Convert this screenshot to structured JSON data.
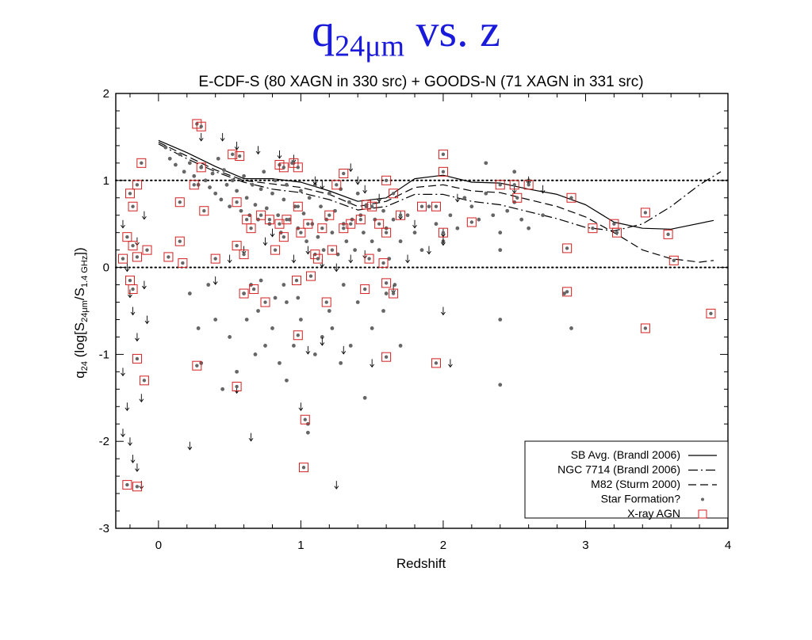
{
  "slide": {
    "title_main": "q",
    "title_sub": "24μm",
    "title_rest": " vs. z"
  },
  "chart_data": {
    "type": "scatter",
    "title": "E-CDF-S (80 XAGN in 330 src) + GOODS-N (71 XAGN in 331 src)",
    "xlabel": "Redshift",
    "ylabel_main": "q",
    "ylabel_sub": "24",
    "ylabel_rest": " (log[S",
    "ylabel_sub2": "24μm",
    "ylabel_rest2": "/S",
    "ylabel_sub3": "1.4 GHz",
    "ylabel_end": "])",
    "xlim": [
      -0.3,
      4.0
    ],
    "ylim": [
      -3.0,
      2.0
    ],
    "xticks": [
      "0",
      "1",
      "2",
      "3",
      "4"
    ],
    "yticks": [
      "-3",
      "-2",
      "-1",
      "0",
      "1",
      "2"
    ],
    "reference_lines": [
      1.0,
      0.0
    ],
    "legend": {
      "placement": "bottom-right",
      "entries": [
        {
          "label": "SB Avg. (Brandl 2006)",
          "style": "solid"
        },
        {
          "label": "NGC 7714 (Brandl 2006)",
          "style": "dash-dot"
        },
        {
          "label": "M82 (Sturm 2000)",
          "style": "dashed"
        },
        {
          "label": "Star Formation?",
          "style": "dot"
        },
        {
          "label": "X-ray AGN",
          "style": "square"
        }
      ]
    },
    "colors": {
      "points": "#666666",
      "agn": "#d42020",
      "title": "#1a1adb",
      "axis": "#000000"
    },
    "series": [
      {
        "name": "SB Avg. (Brandl 2006)",
        "style": "solid",
        "x": [
          0.0,
          0.2,
          0.4,
          0.6,
          0.8,
          1.0,
          1.2,
          1.4,
          1.6,
          1.8,
          2.0,
          2.2,
          2.4,
          2.6,
          2.8,
          3.0,
          3.2,
          3.4,
          3.6,
          3.9
        ],
        "y": [
          1.46,
          1.32,
          1.16,
          1.02,
          1.02,
          0.98,
          0.88,
          0.76,
          0.8,
          1.02,
          1.06,
          0.98,
          0.97,
          0.9,
          0.84,
          0.72,
          0.52,
          0.45,
          0.44,
          0.54
        ]
      },
      {
        "name": "NGC 7714 (Brandl 2006)",
        "style": "dash-dot",
        "x": [
          0.0,
          0.2,
          0.4,
          0.6,
          0.8,
          1.0,
          1.2,
          1.4,
          1.6,
          1.8,
          2.0,
          2.2,
          2.4,
          2.6,
          2.8,
          3.0,
          3.2,
          3.4,
          3.6,
          3.8,
          3.95
        ],
        "y": [
          1.42,
          1.25,
          1.1,
          0.98,
          0.9,
          0.86,
          0.78,
          0.66,
          0.7,
          0.84,
          0.84,
          0.76,
          0.72,
          0.64,
          0.56,
          0.46,
          0.42,
          0.5,
          0.7,
          0.95,
          1.1
        ]
      },
      {
        "name": "M82 (Sturm 2000)",
        "style": "dashed",
        "x": [
          0.0,
          0.2,
          0.4,
          0.6,
          0.8,
          1.0,
          1.2,
          1.4,
          1.6,
          1.8,
          2.0,
          2.2,
          2.4,
          2.6,
          2.8,
          3.0,
          3.2,
          3.4,
          3.6,
          3.8,
          3.9
        ],
        "y": [
          1.44,
          1.28,
          1.12,
          1.0,
          0.96,
          0.92,
          0.84,
          0.7,
          0.76,
          0.92,
          0.95,
          0.88,
          0.86,
          0.78,
          0.7,
          0.58,
          0.4,
          0.2,
          0.1,
          0.06,
          0.08
        ]
      }
    ],
    "star_formation_points": [
      [
        0.05,
        1.38
      ],
      [
        0.08,
        1.25
      ],
      [
        0.12,
        1.18
      ],
      [
        0.15,
        1.3
      ],
      [
        0.18,
        1.1
      ],
      [
        0.22,
        1.2
      ],
      [
        0.25,
        1.05
      ],
      [
        0.28,
        0.95
      ],
      [
        0.3,
        1.15
      ],
      [
        0.33,
        1.0
      ],
      [
        0.36,
        0.92
      ],
      [
        0.38,
        1.08
      ],
      [
        0.4,
        0.85
      ],
      [
        0.42,
        1.25
      ],
      [
        0.44,
        0.78
      ],
      [
        0.46,
        1.12
      ],
      [
        0.48,
        0.95
      ],
      [
        0.5,
        0.7
      ],
      [
        0.52,
        1.0
      ],
      [
        0.55,
        0.88
      ],
      [
        0.58,
        0.65
      ],
      [
        0.6,
        1.05
      ],
      [
        0.62,
        0.8
      ],
      [
        0.64,
        0.6
      ],
      [
        0.66,
        0.95
      ],
      [
        0.68,
        0.72
      ],
      [
        0.7,
        0.55
      ],
      [
        0.72,
        0.9
      ],
      [
        0.74,
        1.1
      ],
      [
        0.76,
        0.68
      ],
      [
        0.78,
        0.5
      ],
      [
        0.8,
        0.85
      ],
      [
        0.82,
        1.0
      ],
      [
        0.84,
        0.6
      ],
      [
        0.86,
        0.4
      ],
      [
        0.88,
        0.78
      ],
      [
        0.9,
        0.95
      ],
      [
        0.92,
        0.55
      ],
      [
        0.94,
        1.2
      ],
      [
        0.96,
        0.7
      ],
      [
        0.98,
        0.45
      ],
      [
        1.0,
        0.88
      ],
      [
        1.02,
        0.62
      ],
      [
        1.04,
        0.3
      ],
      [
        1.06,
        0.8
      ],
      [
        1.08,
        0.5
      ],
      [
        1.1,
        0.95
      ],
      [
        1.12,
        0.35
      ],
      [
        1.14,
        0.7
      ],
      [
        1.16,
        0.2
      ],
      [
        1.18,
        0.55
      ],
      [
        1.2,
        0.85
      ],
      [
        1.22,
        0.4
      ],
      [
        1.24,
        0.65
      ],
      [
        1.26,
        0.15
      ],
      [
        1.28,
        0.9
      ],
      [
        1.3,
        0.5
      ],
      [
        1.32,
        0.3
      ],
      [
        1.34,
        0.75
      ],
      [
        1.36,
        0.55
      ],
      [
        1.38,
        0.2
      ],
      [
        1.4,
        0.85
      ],
      [
        1.42,
        0.6
      ],
      [
        1.44,
        0.4
      ],
      [
        1.46,
        0.7
      ],
      [
        1.5,
        0.3
      ],
      [
        1.52,
        0.55
      ],
      [
        1.55,
        0.2
      ],
      [
        1.58,
        0.65
      ],
      [
        1.6,
        0.45
      ],
      [
        1.62,
        0.1
      ],
      [
        1.65,
        0.55
      ],
      [
        1.7,
        0.3
      ],
      [
        1.75,
        0.6
      ],
      [
        1.8,
        0.4
      ],
      [
        1.85,
        0.2
      ],
      [
        1.9,
        0.7
      ],
      [
        1.95,
        0.5
      ],
      [
        2.0,
        0.3
      ],
      [
        2.05,
        0.6
      ],
      [
        2.1,
        0.45
      ],
      [
        2.15,
        0.8
      ],
      [
        2.2,
        0.7
      ],
      [
        2.25,
        0.55
      ],
      [
        2.3,
        0.85
      ],
      [
        2.35,
        0.6
      ],
      [
        2.4,
        0.4
      ],
      [
        2.45,
        0.65
      ],
      [
        2.5,
        0.75
      ],
      [
        2.55,
        0.55
      ],
      [
        2.6,
        0.45
      ],
      [
        2.7,
        0.6
      ],
      [
        2.3,
        1.2
      ],
      [
        2.5,
        1.1
      ],
      [
        2.6,
        1.0
      ],
      [
        2.4,
        0.2
      ],
      [
        0.6,
        -0.3
      ],
      [
        0.7,
        -0.5
      ],
      [
        0.8,
        -0.7
      ],
      [
        0.9,
        -0.4
      ],
      [
        0.95,
        -0.9
      ],
      [
        1.0,
        -0.6
      ],
      [
        1.1,
        -1.0
      ],
      [
        1.2,
        -0.5
      ],
      [
        0.5,
        -0.8
      ],
      [
        0.4,
        -0.6
      ],
      [
        0.3,
        -1.1
      ],
      [
        0.55,
        -1.2
      ],
      [
        0.65,
        -0.2
      ],
      [
        0.75,
        -0.9
      ],
      [
        0.85,
        -1.1
      ],
      [
        1.3,
        -0.2
      ],
      [
        1.4,
        -0.4
      ],
      [
        1.45,
        -1.5
      ],
      [
        1.5,
        -0.7
      ],
      [
        1.6,
        -0.3
      ],
      [
        1.7,
        -0.9
      ],
      [
        0.45,
        -1.4
      ],
      [
        1.05,
        -1.8
      ],
      [
        1.05,
        -1.9
      ],
      [
        0.9,
        -1.3
      ],
      [
        1.15,
        -0.8
      ],
      [
        1.35,
        -0.9
      ],
      [
        2.4,
        -1.35
      ],
      [
        2.4,
        -0.6
      ],
      [
        2.9,
        -0.7
      ],
      [
        2.85,
        -0.3
      ],
      [
        0.22,
        -0.3
      ],
      [
        0.28,
        -0.7
      ],
      [
        0.35,
        -0.2
      ],
      [
        0.62,
        -0.6
      ],
      [
        0.68,
        -1.0
      ],
      [
        0.72,
        -0.15
      ],
      [
        0.82,
        -0.35
      ],
      [
        0.88,
        -0.2
      ],
      [
        0.98,
        -0.35
      ],
      [
        1.22,
        -0.7
      ],
      [
        1.28,
        -1.1
      ],
      [
        1.58,
        -0.5
      ],
      [
        1.66,
        -0.2
      ]
    ],
    "xray_agn_points": [
      [
        0.27,
        1.65
      ],
      [
        0.3,
        1.62
      ],
      [
        0.52,
        1.3
      ],
      [
        0.57,
        1.28
      ],
      [
        0.3,
        1.15
      ],
      [
        0.85,
        1.18
      ],
      [
        0.88,
        1.15
      ],
      [
        0.95,
        1.2
      ],
      [
        0.98,
        1.15
      ],
      [
        1.25,
        0.95
      ],
      [
        1.3,
        1.08
      ],
      [
        1.6,
        1.0
      ],
      [
        2.0,
        1.3
      ],
      [
        2.0,
        1.1
      ],
      [
        2.4,
        0.95
      ],
      [
        2.5,
        0.95
      ],
      [
        2.6,
        0.95
      ],
      [
        0.25,
        0.95
      ],
      [
        0.15,
        0.75
      ],
      [
        0.32,
        0.65
      ],
      [
        0.55,
        0.75
      ],
      [
        0.62,
        0.55
      ],
      [
        0.65,
        0.45
      ],
      [
        0.72,
        0.6
      ],
      [
        0.78,
        0.55
      ],
      [
        0.85,
        0.5
      ],
      [
        0.9,
        0.55
      ],
      [
        0.98,
        0.7
      ],
      [
        1.05,
        0.5
      ],
      [
        1.15,
        0.45
      ],
      [
        1.2,
        0.6
      ],
      [
        1.3,
        0.45
      ],
      [
        1.35,
        0.5
      ],
      [
        1.42,
        0.55
      ],
      [
        1.46,
        0.72
      ],
      [
        1.5,
        0.7
      ],
      [
        1.55,
        0.5
      ],
      [
        1.6,
        0.4
      ],
      [
        1.65,
        0.85
      ],
      [
        1.7,
        0.6
      ],
      [
        1.85,
        0.7
      ],
      [
        1.95,
        0.7
      ],
      [
        2.0,
        0.4
      ],
      [
        2.2,
        0.52
      ],
      [
        2.52,
        0.8
      ],
      [
        2.9,
        0.8
      ],
      [
        3.2,
        0.5
      ],
      [
        3.22,
        0.4
      ],
      [
        3.05,
        0.45
      ],
      [
        3.42,
        0.63
      ],
      [
        3.58,
        0.38
      ],
      [
        3.62,
        0.08
      ],
      [
        2.87,
        0.22
      ],
      [
        0.15,
        0.3
      ],
      [
        0.4,
        0.1
      ],
      [
        0.55,
        0.25
      ],
      [
        0.6,
        0.15
      ],
      [
        0.82,
        0.2
      ],
      [
        0.88,
        0.35
      ],
      [
        1.0,
        0.4
      ],
      [
        1.1,
        0.15
      ],
      [
        1.12,
        0.1
      ],
      [
        1.22,
        0.2
      ],
      [
        1.48,
        0.1
      ],
      [
        1.58,
        0.05
      ],
      [
        0.07,
        0.12
      ],
      [
        0.17,
        0.05
      ],
      [
        0.6,
        -0.3
      ],
      [
        0.67,
        -0.25
      ],
      [
        0.75,
        -0.4
      ],
      [
        0.97,
        -0.15
      ],
      [
        1.07,
        -0.1
      ],
      [
        1.18,
        -0.4
      ],
      [
        1.45,
        -0.25
      ],
      [
        1.6,
        -0.18
      ],
      [
        1.65,
        -0.3
      ],
      [
        0.98,
        -0.78
      ],
      [
        1.6,
        -1.03
      ],
      [
        0.27,
        -1.13
      ],
      [
        0.55,
        -1.37
      ],
      [
        1.03,
        -1.75
      ],
      [
        1.02,
        -2.3
      ],
      [
        1.95,
        -1.1
      ],
      [
        2.87,
        -0.28
      ],
      [
        3.42,
        -0.7
      ],
      [
        3.88,
        -0.53
      ],
      [
        -0.2,
        0.85
      ],
      [
        -0.18,
        0.7
      ],
      [
        -0.15,
        0.95
      ],
      [
        -0.12,
        1.2
      ],
      [
        -0.22,
        0.35
      ],
      [
        -0.18,
        0.25
      ],
      [
        -0.15,
        0.12
      ],
      [
        -0.25,
        0.1
      ],
      [
        -0.2,
        -0.15
      ],
      [
        -0.18,
        -0.25
      ],
      [
        -0.15,
        -1.05
      ],
      [
        -0.1,
        -1.3
      ],
      [
        -0.22,
        -2.5
      ],
      [
        -0.15,
        -2.52
      ],
      [
        -0.08,
        0.2
      ]
    ],
    "upper_limit_arrows": [
      [
        0.3,
        1.5
      ],
      [
        0.45,
        1.5
      ],
      [
        0.55,
        1.4
      ],
      [
        0.7,
        1.35
      ],
      [
        0.85,
        1.3
      ],
      [
        0.95,
        1.25
      ],
      [
        1.1,
        1.0
      ],
      [
        1.15,
        0.95
      ],
      [
        1.35,
        1.15
      ],
      [
        1.4,
        1.0
      ],
      [
        1.45,
        0.9
      ],
      [
        1.55,
        0.8
      ],
      [
        1.7,
        0.6
      ],
      [
        1.8,
        0.5
      ],
      [
        2.0,
        0.4
      ],
      [
        2.1,
        0.8
      ],
      [
        2.5,
        0.9
      ],
      [
        2.6,
        1.0
      ],
      [
        2.7,
        0.9
      ],
      [
        0.5,
        0.1
      ],
      [
        0.6,
        0.2
      ],
      [
        0.75,
        0.3
      ],
      [
        0.8,
        0.4
      ],
      [
        0.95,
        0.1
      ],
      [
        1.05,
        0.2
      ],
      [
        1.15,
        0.05
      ],
      [
        1.25,
        0.0
      ],
      [
        1.35,
        0.1
      ],
      [
        1.45,
        0.15
      ],
      [
        1.75,
        0.1
      ],
      [
        1.9,
        0.2
      ],
      [
        2.0,
        0.3
      ],
      [
        0.55,
        -1.4
      ],
      [
        0.65,
        -1.95
      ],
      [
        0.22,
        -2.05
      ],
      [
        1.0,
        -1.6
      ],
      [
        1.05,
        -0.95
      ],
      [
        1.15,
        -0.85
      ],
      [
        1.3,
        -0.95
      ],
      [
        1.5,
        -1.1
      ],
      [
        1.65,
        -0.25
      ],
      [
        2.0,
        -0.5
      ],
      [
        2.05,
        -1.1
      ],
      [
        1.25,
        -2.5
      ],
      [
        0.4,
        -0.15
      ],
      [
        -0.25,
        0.5
      ],
      [
        -0.22,
        0.0
      ],
      [
        -0.2,
        -0.3
      ],
      [
        -0.18,
        -0.5
      ],
      [
        -0.15,
        -0.8
      ],
      [
        -0.25,
        -1.2
      ],
      [
        -0.22,
        -1.6
      ],
      [
        -0.2,
        -2.0
      ],
      [
        -0.15,
        -2.3
      ],
      [
        -0.12,
        -1.5
      ],
      [
        -0.1,
        -0.2
      ],
      [
        -0.08,
        -0.6
      ],
      [
        -0.25,
        -1.9
      ],
      [
        -0.18,
        -2.2
      ],
      [
        -0.12,
        -2.5
      ],
      [
        -0.15,
        0.3
      ],
      [
        -0.1,
        0.6
      ]
    ]
  }
}
